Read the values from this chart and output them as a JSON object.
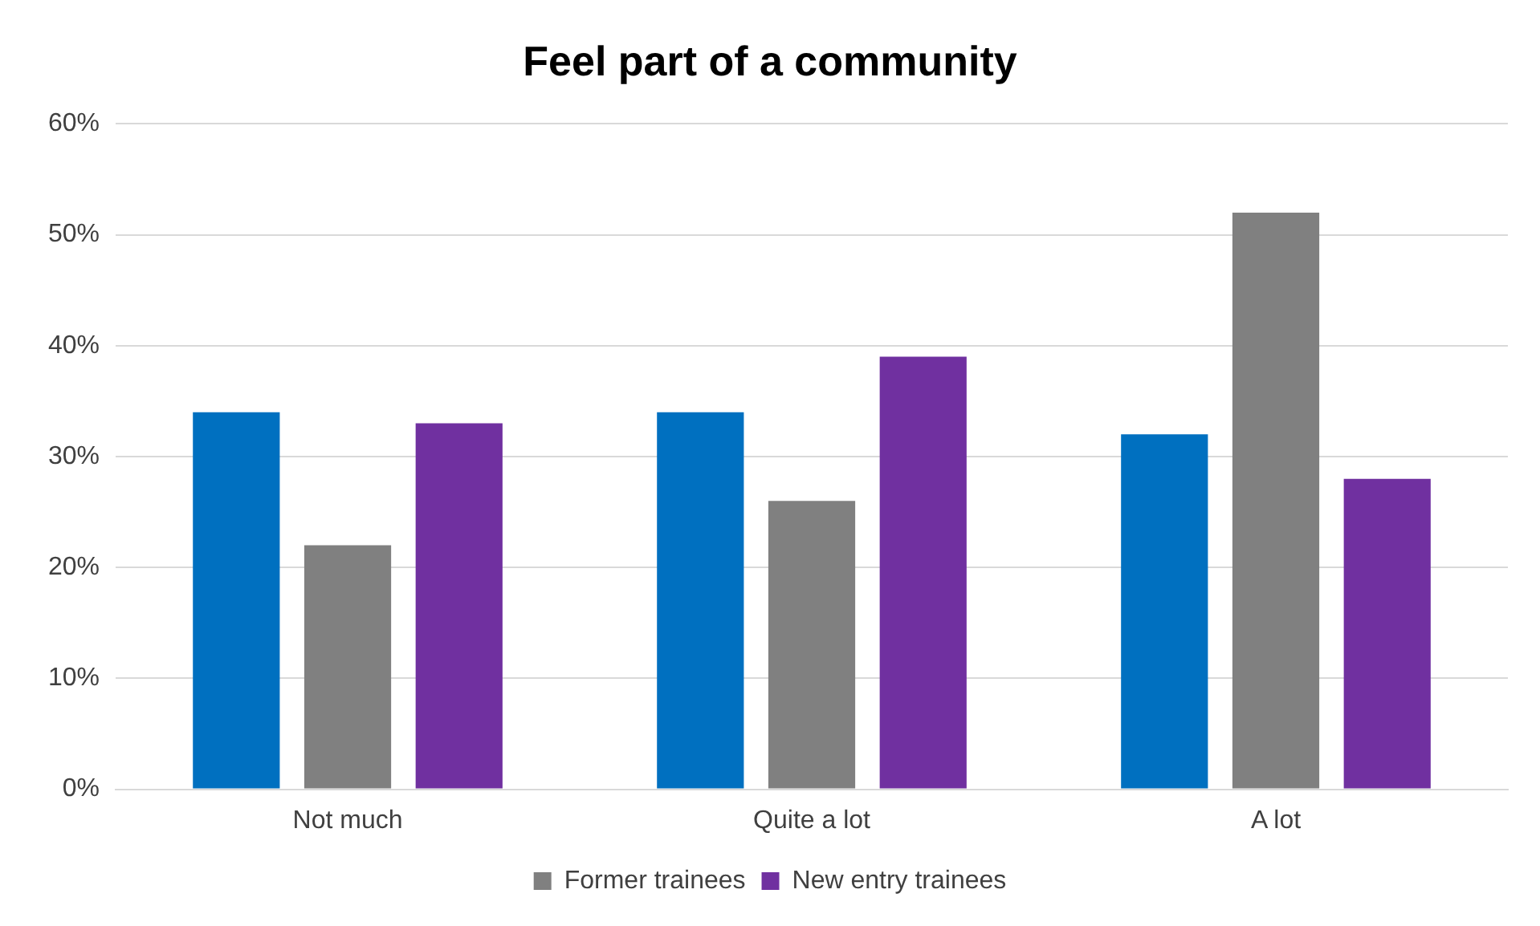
{
  "chart_data": {
    "type": "bar",
    "title": "Feel part of a community",
    "categories": [
      "Not much",
      "Quite a lot",
      "A lot"
    ],
    "series": [
      {
        "color": "#0070c0",
        "values": [
          34,
          34,
          32
        ]
      },
      {
        "name": "Former trainees",
        "color": "#808080",
        "values": [
          22,
          26,
          52
        ]
      },
      {
        "name": "New entry trainees",
        "color": "#7030a0",
        "values": [
          33,
          39,
          28
        ]
      }
    ],
    "ylim": [
      0,
      60
    ],
    "yticks": [
      {
        "value": 0,
        "label": "0%"
      },
      {
        "value": 10,
        "label": "10%"
      },
      {
        "value": 20,
        "label": "20%"
      },
      {
        "value": 30,
        "label": "30%"
      },
      {
        "value": 40,
        "label": "40%"
      },
      {
        "value": 50,
        "label": "50%"
      },
      {
        "value": 60,
        "label": "60%"
      }
    ],
    "grid": "y",
    "legend": "bottom"
  }
}
